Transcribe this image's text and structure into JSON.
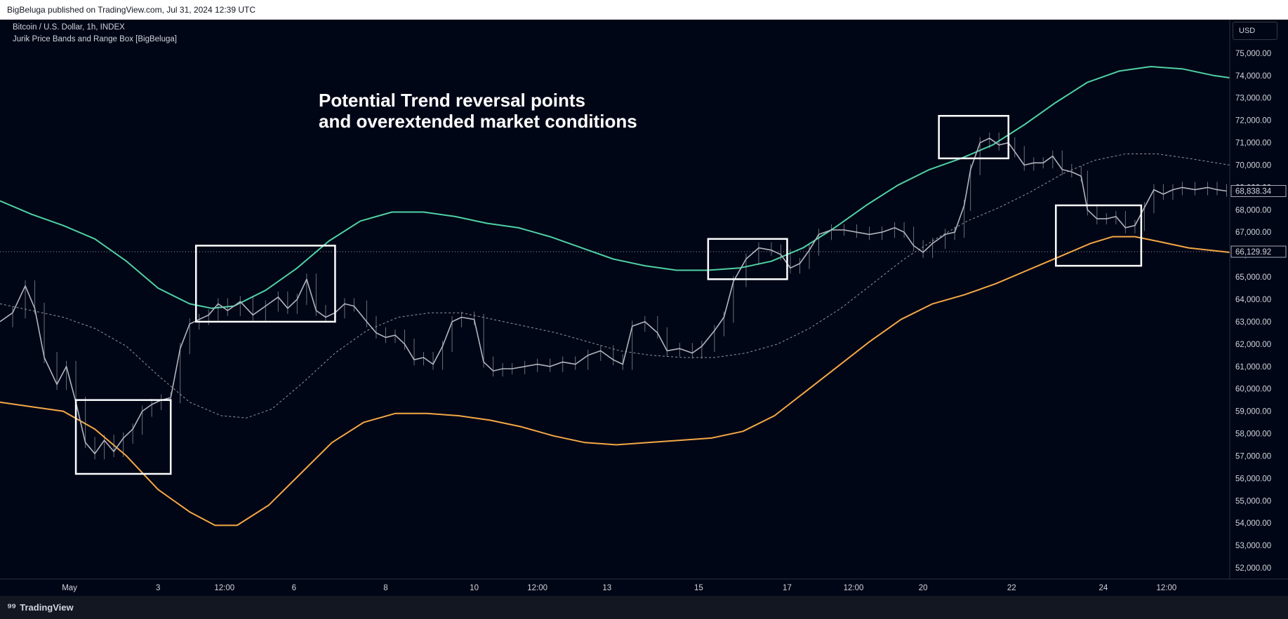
{
  "header": {
    "published_text": "BigBeluga published on TradingView.com, Jul 31, 2024 12:39 UTC"
  },
  "chart_info": {
    "symbol_line": "Bitcoin / U.S. Dollar, 1h, INDEX",
    "indicator_line": "Jurik Price Bands and Range Box [BigBeluga]"
  },
  "annotation": {
    "line1": "Potential Trend reversal points",
    "line2": "and overextended market conditions"
  },
  "currency_label": "USD",
  "footer": {
    "logo_text": "TradingView",
    "logo_icon": "tradingview-logo-icon"
  },
  "colors": {
    "background": "#010616",
    "price": "#b2b5be",
    "upper_band": "#4fd1a4",
    "lower_band": "#f5a845",
    "mid_line": "#9598a1",
    "box": "#ffffff"
  },
  "chart_data": {
    "type": "line",
    "title": "",
    "xlabel": "",
    "ylabel": "",
    "ylim": [
      51500,
      76500
    ],
    "x_ticks": [
      {
        "label": "May",
        "t": 2.2
      },
      {
        "label": "3",
        "t": 5.0
      },
      {
        "label": "12:00",
        "t": 7.1
      },
      {
        "label": "6",
        "t": 9.3
      },
      {
        "label": "8",
        "t": 12.2
      },
      {
        "label": "10",
        "t": 15.0
      },
      {
        "label": "12:00",
        "t": 17.0
      },
      {
        "label": "13",
        "t": 19.2
      },
      {
        "label": "15",
        "t": 22.1
      },
      {
        "label": "17",
        "t": 24.9
      },
      {
        "label": "12:00",
        "t": 27.0
      },
      {
        "label": "20",
        "t": 29.2
      },
      {
        "label": "22",
        "t": 32.0
      },
      {
        "label": "24",
        "t": 34.9
      },
      {
        "label": "12:00",
        "t": 36.9
      }
    ],
    "y_ticks": [
      52000,
      53000,
      54000,
      55000,
      56000,
      57000,
      58000,
      59000,
      60000,
      61000,
      62000,
      63000,
      64000,
      65000,
      66000,
      67000,
      68000,
      69000,
      70000,
      71000,
      72000,
      73000,
      74000,
      75000
    ],
    "series": [
      {
        "key": "price",
        "values": [
          [
            0.0,
            63000
          ],
          [
            0.4,
            63400
          ],
          [
            0.8,
            64600
          ],
          [
            1.1,
            63600
          ],
          [
            1.4,
            61400
          ],
          [
            1.8,
            60200
          ],
          [
            2.1,
            61000
          ],
          [
            2.4,
            59400
          ],
          [
            2.7,
            57600
          ],
          [
            3.0,
            57100
          ],
          [
            3.3,
            57700
          ],
          [
            3.6,
            57200
          ],
          [
            3.9,
            57800
          ],
          [
            4.2,
            58200
          ],
          [
            4.5,
            59000
          ],
          [
            4.8,
            59300
          ],
          [
            5.1,
            59500
          ],
          [
            5.4,
            59600
          ],
          [
            5.7,
            61800
          ],
          [
            6.0,
            62900
          ],
          [
            6.3,
            63100
          ],
          [
            6.6,
            63300
          ],
          [
            6.9,
            63800
          ],
          [
            7.2,
            63500
          ],
          [
            7.6,
            63900
          ],
          [
            8.0,
            63300
          ],
          [
            8.4,
            63700
          ],
          [
            8.8,
            64100
          ],
          [
            9.1,
            63600
          ],
          [
            9.4,
            64000
          ],
          [
            9.7,
            64900
          ],
          [
            10.0,
            63500
          ],
          [
            10.3,
            63200
          ],
          [
            10.6,
            63400
          ],
          [
            10.9,
            63800
          ],
          [
            11.2,
            63700
          ],
          [
            11.6,
            63000
          ],
          [
            11.9,
            62500
          ],
          [
            12.2,
            62300
          ],
          [
            12.5,
            62400
          ],
          [
            12.8,
            62000
          ],
          [
            13.1,
            61300
          ],
          [
            13.4,
            61400
          ],
          [
            13.7,
            61100
          ],
          [
            14.0,
            61900
          ],
          [
            14.3,
            63000
          ],
          [
            14.6,
            63200
          ],
          [
            15.0,
            63100
          ],
          [
            15.3,
            61200
          ],
          [
            15.6,
            60800
          ],
          [
            15.9,
            60900
          ],
          [
            16.2,
            60900
          ],
          [
            16.6,
            61000
          ],
          [
            17.0,
            61100
          ],
          [
            17.4,
            61000
          ],
          [
            17.8,
            61200
          ],
          [
            18.2,
            61100
          ],
          [
            18.6,
            61500
          ],
          [
            19.0,
            61700
          ],
          [
            19.4,
            61300
          ],
          [
            19.7,
            61100
          ],
          [
            20.0,
            62800
          ],
          [
            20.4,
            63000
          ],
          [
            20.8,
            62500
          ],
          [
            21.1,
            61700
          ],
          [
            21.5,
            61800
          ],
          [
            21.9,
            61600
          ],
          [
            22.2,
            61900
          ],
          [
            22.6,
            62600
          ],
          [
            22.9,
            63200
          ],
          [
            23.2,
            64800
          ],
          [
            23.6,
            65800
          ],
          [
            24.0,
            66300
          ],
          [
            24.4,
            66200
          ],
          [
            24.7,
            66000
          ],
          [
            25.0,
            65400
          ],
          [
            25.3,
            65600
          ],
          [
            25.6,
            66200
          ],
          [
            25.9,
            66900
          ],
          [
            26.3,
            67100
          ],
          [
            26.7,
            67100
          ],
          [
            27.1,
            67000
          ],
          [
            27.5,
            66900
          ],
          [
            27.9,
            67000
          ],
          [
            28.3,
            67200
          ],
          [
            28.6,
            67000
          ],
          [
            28.9,
            66400
          ],
          [
            29.2,
            66100
          ],
          [
            29.5,
            66500
          ],
          [
            29.9,
            66900
          ],
          [
            30.2,
            67000
          ],
          [
            30.5,
            68200
          ],
          [
            30.7,
            69800
          ],
          [
            31.0,
            71000
          ],
          [
            31.3,
            71200
          ],
          [
            31.6,
            70900
          ],
          [
            31.9,
            71000
          ],
          [
            32.1,
            70600
          ],
          [
            32.4,
            70000
          ],
          [
            32.7,
            70100
          ],
          [
            33.0,
            70100
          ],
          [
            33.3,
            70400
          ],
          [
            33.6,
            69800
          ],
          [
            33.9,
            69700
          ],
          [
            34.2,
            69500
          ],
          [
            34.4,
            68000
          ],
          [
            34.7,
            67600
          ],
          [
            35.0,
            67600
          ],
          [
            35.3,
            67700
          ],
          [
            35.6,
            67200
          ],
          [
            35.9,
            67300
          ],
          [
            36.2,
            68100
          ],
          [
            36.5,
            68900
          ],
          [
            36.8,
            68700
          ],
          [
            37.1,
            68900
          ],
          [
            37.4,
            69000
          ],
          [
            37.8,
            68900
          ],
          [
            38.2,
            69000
          ],
          [
            38.5,
            68900
          ],
          [
            38.8,
            68840
          ]
        ]
      },
      {
        "key": "upper_band",
        "values": [
          [
            0.0,
            68400
          ],
          [
            1.0,
            67800
          ],
          [
            2.0,
            67300
          ],
          [
            3.0,
            66700
          ],
          [
            4.0,
            65700
          ],
          [
            5.0,
            64500
          ],
          [
            6.0,
            63800
          ],
          [
            6.7,
            63600
          ],
          [
            7.4,
            63700
          ],
          [
            8.4,
            64400
          ],
          [
            9.4,
            65400
          ],
          [
            10.4,
            66600
          ],
          [
            11.4,
            67500
          ],
          [
            12.4,
            67900
          ],
          [
            13.4,
            67900
          ],
          [
            14.4,
            67700
          ],
          [
            15.4,
            67400
          ],
          [
            16.4,
            67200
          ],
          [
            17.4,
            66800
          ],
          [
            18.4,
            66300
          ],
          [
            19.4,
            65800
          ],
          [
            20.4,
            65500
          ],
          [
            21.4,
            65300
          ],
          [
            22.4,
            65300
          ],
          [
            23.4,
            65400
          ],
          [
            24.4,
            65700
          ],
          [
            25.4,
            66300
          ],
          [
            26.4,
            67200
          ],
          [
            27.4,
            68200
          ],
          [
            28.4,
            69100
          ],
          [
            29.4,
            69800
          ],
          [
            30.4,
            70300
          ],
          [
            31.4,
            70900
          ],
          [
            32.4,
            71800
          ],
          [
            33.4,
            72800
          ],
          [
            34.4,
            73700
          ],
          [
            35.4,
            74200
          ],
          [
            36.4,
            74400
          ],
          [
            37.4,
            74300
          ],
          [
            38.4,
            74000
          ],
          [
            38.9,
            73900
          ]
        ]
      },
      {
        "key": "mid_line",
        "values": [
          [
            0.0,
            63800
          ],
          [
            1.0,
            63500
          ],
          [
            2.0,
            63200
          ],
          [
            3.0,
            62700
          ],
          [
            4.0,
            61900
          ],
          [
            5.0,
            60600
          ],
          [
            6.0,
            59400
          ],
          [
            7.0,
            58800
          ],
          [
            7.8,
            58700
          ],
          [
            8.6,
            59100
          ],
          [
            9.6,
            60300
          ],
          [
            10.6,
            61600
          ],
          [
            11.6,
            62600
          ],
          [
            12.6,
            63200
          ],
          [
            13.6,
            63400
          ],
          [
            14.6,
            63400
          ],
          [
            15.6,
            63100
          ],
          [
            16.6,
            62800
          ],
          [
            17.6,
            62500
          ],
          [
            18.6,
            62100
          ],
          [
            19.6,
            61700
          ],
          [
            20.6,
            61500
          ],
          [
            21.6,
            61400
          ],
          [
            22.6,
            61400
          ],
          [
            23.6,
            61600
          ],
          [
            24.6,
            62000
          ],
          [
            25.6,
            62700
          ],
          [
            26.6,
            63600
          ],
          [
            27.6,
            64700
          ],
          [
            28.6,
            65800
          ],
          [
            29.6,
            66700
          ],
          [
            30.6,
            67500
          ],
          [
            31.6,
            68100
          ],
          [
            32.6,
            68800
          ],
          [
            33.6,
            69600
          ],
          [
            34.6,
            70200
          ],
          [
            35.6,
            70500
          ],
          [
            36.6,
            70500
          ],
          [
            37.6,
            70300
          ],
          [
            38.9,
            70000
          ]
        ]
      },
      {
        "key": "lower_band",
        "values": [
          [
            0.0,
            59400
          ],
          [
            1.0,
            59200
          ],
          [
            2.0,
            59000
          ],
          [
            3.0,
            58200
          ],
          [
            4.0,
            57000
          ],
          [
            5.0,
            55500
          ],
          [
            6.0,
            54500
          ],
          [
            6.8,
            53900
          ],
          [
            7.5,
            53900
          ],
          [
            8.5,
            54800
          ],
          [
            9.5,
            56200
          ],
          [
            10.5,
            57600
          ],
          [
            11.5,
            58500
          ],
          [
            12.5,
            58900
          ],
          [
            13.5,
            58900
          ],
          [
            14.5,
            58800
          ],
          [
            15.5,
            58600
          ],
          [
            16.5,
            58300
          ],
          [
            17.5,
            57900
          ],
          [
            18.5,
            57600
          ],
          [
            19.5,
            57500
          ],
          [
            20.5,
            57600
          ],
          [
            21.5,
            57700
          ],
          [
            22.5,
            57800
          ],
          [
            23.5,
            58100
          ],
          [
            24.5,
            58800
          ],
          [
            25.5,
            59900
          ],
          [
            26.5,
            61000
          ],
          [
            27.5,
            62100
          ],
          [
            28.5,
            63100
          ],
          [
            29.5,
            63800
          ],
          [
            30.5,
            64200
          ],
          [
            31.5,
            64700
          ],
          [
            32.5,
            65300
          ],
          [
            33.5,
            65900
          ],
          [
            34.5,
            66500
          ],
          [
            35.2,
            66800
          ],
          [
            35.9,
            66800
          ],
          [
            36.6,
            66600
          ],
          [
            37.6,
            66300
          ],
          [
            38.9,
            66100
          ]
        ]
      }
    ],
    "range_boxes": [
      {
        "t0": 2.4,
        "t1": 5.4,
        "p0": 56200,
        "p1": 59500
      },
      {
        "t0": 6.2,
        "t1": 10.6,
        "p0": 63000,
        "p1": 66400
      },
      {
        "t0": 22.4,
        "t1": 24.9,
        "p0": 64900,
        "p1": 66700
      },
      {
        "t0": 29.7,
        "t1": 31.9,
        "p0": 70300,
        "p1": 72200
      },
      {
        "t0": 33.4,
        "t1": 36.1,
        "p0": 65500,
        "p1": 68200
      }
    ],
    "reference_line": {
      "value": 66129.92,
      "label": "66,129.92"
    },
    "last_price": {
      "value": 68838.34,
      "label": "68,838.34"
    }
  }
}
